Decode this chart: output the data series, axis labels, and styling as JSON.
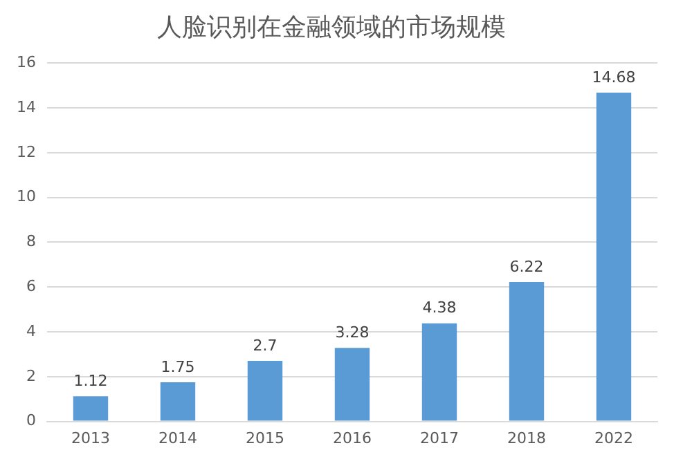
{
  "chart_data": {
    "type": "bar",
    "title": "人脸识别在金融领域的市场规模",
    "categories": [
      "2013",
      "2014",
      "2015",
      "2016",
      "2017",
      "2018",
      "2022"
    ],
    "values": [
      1.12,
      1.75,
      2.7,
      3.28,
      4.38,
      6.22,
      14.68
    ],
    "color": "#5b9bd5",
    "ylim": [
      0,
      16
    ],
    "yticks": [
      0,
      2,
      4,
      6,
      8,
      10,
      12,
      14,
      16
    ],
    "grid": "y",
    "legend": false,
    "data_labels": true
  }
}
